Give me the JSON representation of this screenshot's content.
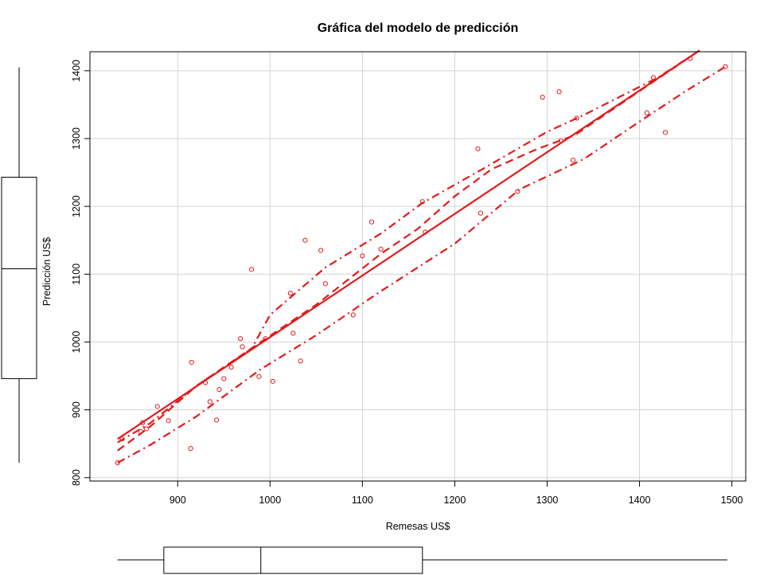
{
  "chart_data": {
    "type": "scatter",
    "title": "Gráfica del modelo de predicción",
    "xlabel": "Remesas US$",
    "ylabel": "Predicción US$",
    "xlim": [
      805,
      1515
    ],
    "ylim": [
      795,
      1428
    ],
    "x_ticks": [
      900,
      1000,
      1100,
      1200,
      1300,
      1400,
      1500
    ],
    "y_ticks": [
      800,
      900,
      1000,
      1100,
      1200,
      1300,
      1400
    ],
    "grid": true,
    "color": "#e41a1c",
    "points": [
      [
        835,
        822
      ],
      [
        840,
        857
      ],
      [
        860,
        868
      ],
      [
        862,
        881
      ],
      [
        866,
        872
      ],
      [
        878,
        905
      ],
      [
        890,
        884
      ],
      [
        914,
        843
      ],
      [
        915,
        970
      ],
      [
        930,
        940
      ],
      [
        935,
        912
      ],
      [
        942,
        885
      ],
      [
        945,
        930
      ],
      [
        950,
        946
      ],
      [
        958,
        963
      ],
      [
        968,
        1005
      ],
      [
        970,
        993
      ],
      [
        980,
        1107
      ],
      [
        988,
        949
      ],
      [
        995,
        1005
      ],
      [
        1003,
        942
      ],
      [
        1022,
        1072
      ],
      [
        1025,
        1013
      ],
      [
        1033,
        972
      ],
      [
        1038,
        1150
      ],
      [
        1055,
        1135
      ],
      [
        1060,
        1086
      ],
      [
        1090,
        1040
      ],
      [
        1100,
        1127
      ],
      [
        1110,
        1177
      ],
      [
        1120,
        1137
      ],
      [
        1165,
        1207
      ],
      [
        1168,
        1162
      ],
      [
        1225,
        1285
      ],
      [
        1228,
        1190
      ],
      [
        1268,
        1222
      ],
      [
        1295,
        1361
      ],
      [
        1313,
        1369
      ],
      [
        1315,
        1297
      ],
      [
        1328,
        1268
      ],
      [
        1332,
        1330
      ],
      [
        1408,
        1338
      ],
      [
        1415,
        1390
      ],
      [
        1428,
        1309
      ],
      [
        1455,
        1418
      ],
      [
        1493,
        1406
      ]
    ],
    "fit_line": {
      "style": "solid",
      "x": [
        835,
        1465
      ],
      "y": [
        857,
        1430
      ]
    },
    "smooth_curves": [
      {
        "style": "dashed",
        "x": [
          835,
          870,
          920,
          990,
          1050,
          1120,
          1160,
          1200,
          1240,
          1290,
          1330,
          1400,
          1465
        ],
        "y": [
          840,
          875,
          935,
          1000,
          1055,
          1130,
          1167,
          1215,
          1255,
          1285,
          1305,
          1370,
          1430
        ]
      },
      {
        "style": "dashdot",
        "x": [
          835,
          870,
          920,
          980,
          1000,
          1060,
          1120,
          1165,
          1230,
          1300,
          1340,
          1420,
          1465
        ],
        "y": [
          852,
          880,
          935,
          990,
          1040,
          1110,
          1160,
          1205,
          1255,
          1310,
          1335,
          1390,
          1430
        ]
      },
      {
        "style": "dashdot",
        "x": [
          835,
          870,
          920,
          990,
          1050,
          1120,
          1200,
          1270,
          1340,
          1400,
          1450,
          1493
        ],
        "y": [
          822,
          848,
          890,
          960,
          1010,
          1075,
          1145,
          1225,
          1270,
          1325,
          1370,
          1406
        ]
      }
    ],
    "x_boxplot": {
      "whisker_low": 835,
      "q1": 885,
      "median": 990,
      "q3": 1165,
      "whisker_high": 1495
    },
    "y_boxplot": {
      "whisker_low": 822,
      "q1": 946,
      "median": 1108,
      "q3": 1243,
      "whisker_high": 1405
    }
  }
}
